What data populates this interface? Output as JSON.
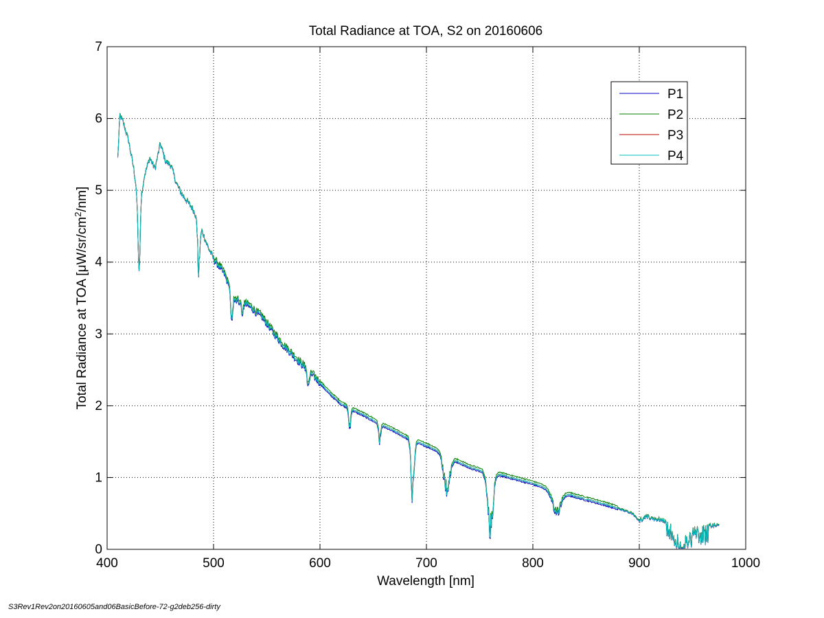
{
  "chart_data": {
    "type": "line",
    "title": "Total Radiance at TOA, S2 on 20160606",
    "xlabel": "Wavelength [nm]",
    "ylabel_parts": [
      "Total Radiance at TOA [",
      "μ",
      "W/sr/cm",
      "2",
      "/nm]"
    ],
    "xlim": [
      400,
      1000
    ],
    "ylim": [
      0,
      7
    ],
    "xticks": [
      "400",
      "500",
      "600",
      "700",
      "800",
      "900",
      "1000"
    ],
    "yticks": [
      "0",
      "1",
      "2",
      "3",
      "4",
      "5",
      "6",
      "7"
    ],
    "grid": true,
    "legend_position": "top-right",
    "series": [
      {
        "name": "P1",
        "color": "#0000bf",
        "offset": -0.02
      },
      {
        "name": "P2",
        "color": "#007f00",
        "offset": 0.03
      },
      {
        "name": "P3",
        "color": "#bf0000",
        "offset": 0.0
      },
      {
        "name": "P4",
        "color": "#00bfbf",
        "offset": 0.0
      }
    ],
    "base_curve": [
      [
        410,
        5.45
      ],
      [
        412,
        6.05
      ],
      [
        415,
        5.95
      ],
      [
        420,
        5.7
      ],
      [
        425,
        5.3
      ],
      [
        430,
        4.75
      ],
      [
        435,
        5.2
      ],
      [
        440,
        5.45
      ],
      [
        445,
        5.3
      ],
      [
        450,
        5.65
      ],
      [
        455,
        5.4
      ],
      [
        460,
        5.35
      ],
      [
        465,
        5.1
      ],
      [
        470,
        4.95
      ],
      [
        475,
        4.85
      ],
      [
        480,
        4.75
      ],
      [
        485,
        4.6
      ],
      [
        490,
        4.4
      ],
      [
        495,
        4.2
      ],
      [
        500,
        4.05
      ],
      [
        505,
        3.95
      ],
      [
        510,
        3.85
      ],
      [
        515,
        3.65
      ],
      [
        520,
        3.5
      ],
      [
        525,
        3.45
      ],
      [
        530,
        3.42
      ],
      [
        535,
        3.38
      ],
      [
        540,
        3.3
      ],
      [
        545,
        3.25
      ],
      [
        550,
        3.15
      ],
      [
        555,
        3.05
      ],
      [
        560,
        2.95
      ],
      [
        565,
        2.85
      ],
      [
        570,
        2.78
      ],
      [
        575,
        2.7
      ],
      [
        580,
        2.62
      ],
      [
        585,
        2.55
      ],
      [
        590,
        2.48
      ],
      [
        595,
        2.4
      ],
      [
        600,
        2.32
      ],
      [
        610,
        2.16
      ],
      [
        620,
        2.03
      ],
      [
        630,
        1.95
      ],
      [
        640,
        1.88
      ],
      [
        650,
        1.8
      ],
      [
        660,
        1.72
      ],
      [
        670,
        1.65
      ],
      [
        680,
        1.57
      ],
      [
        690,
        1.5
      ],
      [
        700,
        1.45
      ],
      [
        710,
        1.38
      ],
      [
        720,
        1.3
      ],
      [
        730,
        1.22
      ],
      [
        740,
        1.15
      ],
      [
        750,
        1.1
      ],
      [
        760,
        1.05
      ],
      [
        770,
        1.04
      ],
      [
        780,
        1.0
      ],
      [
        790,
        0.96
      ],
      [
        800,
        0.92
      ],
      [
        810,
        0.87
      ],
      [
        820,
        0.81
      ],
      [
        830,
        0.78
      ],
      [
        840,
        0.74
      ],
      [
        850,
        0.7
      ],
      [
        860,
        0.66
      ],
      [
        870,
        0.62
      ],
      [
        880,
        0.57
      ],
      [
        890,
        0.52
      ],
      [
        900,
        0.48
      ],
      [
        910,
        0.44
      ],
      [
        920,
        0.41
      ],
      [
        930,
        0.38
      ],
      [
        940,
        0.35
      ],
      [
        950,
        0.33
      ],
      [
        960,
        0.32
      ],
      [
        970,
        0.33
      ],
      [
        975,
        0.33
      ]
    ],
    "absorption_features": [
      [
        430,
        3.75,
        2
      ],
      [
        486,
        3.8,
        2
      ],
      [
        517,
        3.1,
        2
      ],
      [
        527,
        3.2,
        1.5
      ],
      [
        589,
        2.2,
        2
      ],
      [
        628,
        1.65,
        2
      ],
      [
        656,
        1.45,
        2
      ],
      [
        687,
        0.6,
        3
      ],
      [
        719,
        0.72,
        6
      ],
      [
        760,
        0.12,
        5
      ],
      [
        822,
        0.45,
        8
      ],
      [
        900,
        0.38,
        6
      ],
      [
        940,
        0.05,
        10
      ]
    ]
  },
  "footer_text": "S3Rev1Rev2on20160605and06BasicBefore-72-g2deb256-dirty"
}
